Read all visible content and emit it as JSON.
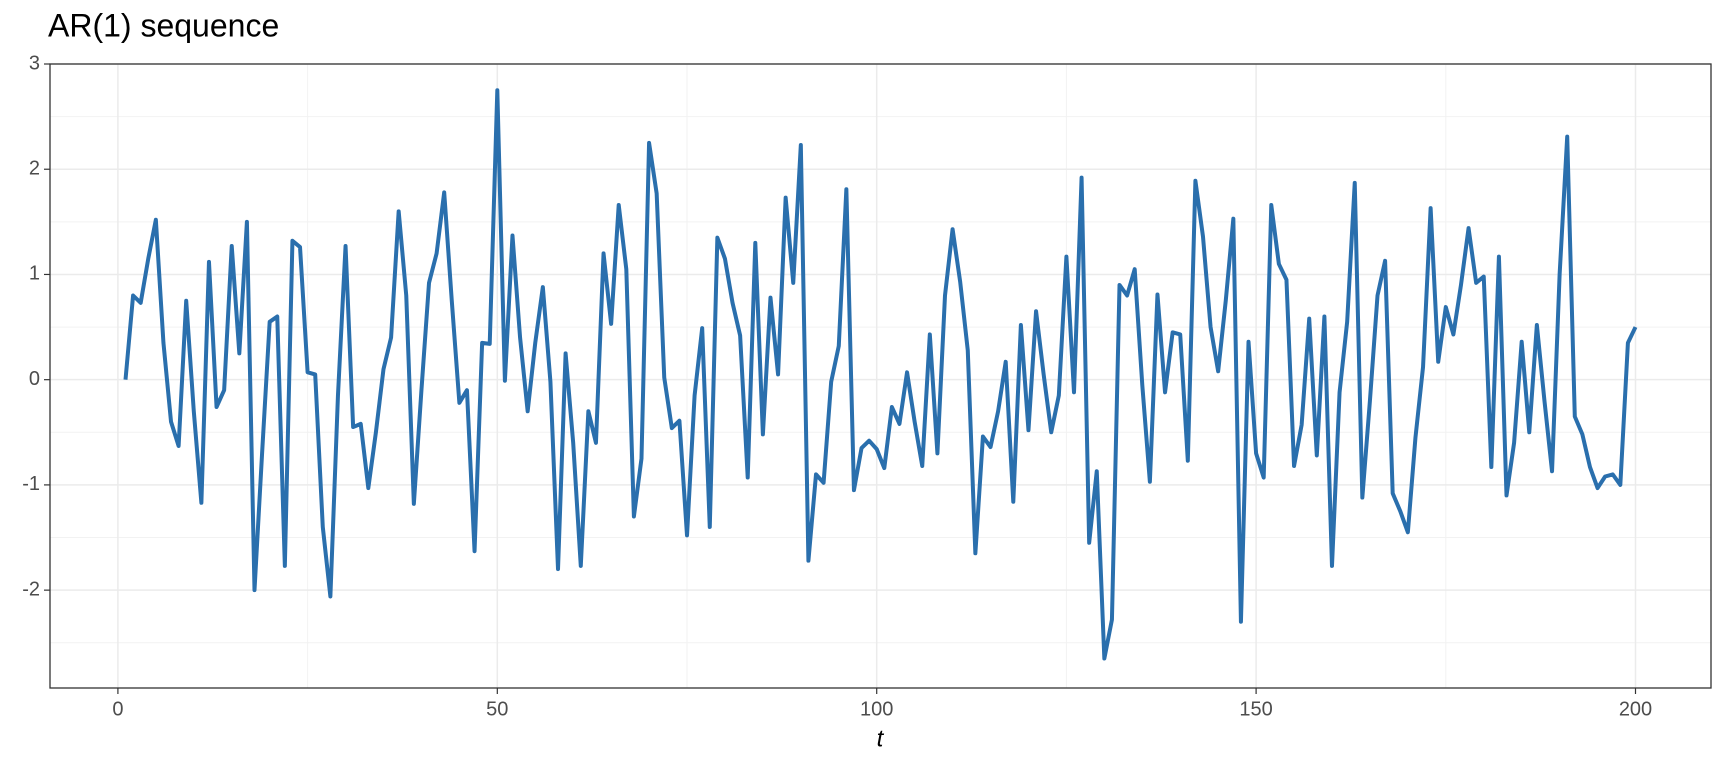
{
  "chart_data": {
    "type": "line",
    "title": "AR(1) sequence",
    "xlabel": "t",
    "x": [
      1,
      2,
      3,
      4,
      5,
      6,
      7,
      8,
      9,
      10,
      11,
      12,
      13,
      14,
      15,
      16,
      17,
      18,
      19,
      20,
      21,
      22,
      23,
      24,
      25,
      26,
      27,
      28,
      29,
      30,
      31,
      32,
      33,
      34,
      35,
      36,
      37,
      38,
      39,
      40,
      41,
      42,
      43,
      44,
      45,
      46,
      47,
      48,
      49,
      50,
      51,
      52,
      53,
      54,
      55,
      56,
      57,
      58,
      59,
      60,
      61,
      62,
      63,
      64,
      65,
      66,
      67,
      68,
      69,
      70,
      71,
      72,
      73,
      74,
      75,
      76,
      77,
      78,
      79,
      80,
      81,
      82,
      83,
      84,
      85,
      86,
      87,
      88,
      89,
      90,
      91,
      92,
      93,
      94,
      95,
      96,
      97,
      98,
      99,
      100,
      101,
      102,
      103,
      104,
      105,
      106,
      107,
      108,
      109,
      110,
      111,
      112,
      113,
      114,
      115,
      116,
      117,
      118,
      119,
      120,
      121,
      122,
      123,
      124,
      125,
      126,
      127,
      128,
      129,
      130,
      131,
      132,
      133,
      134,
      135,
      136,
      137,
      138,
      139,
      140,
      141,
      142,
      143,
      144,
      145,
      146,
      147,
      148,
      149,
      150,
      151,
      152,
      153,
      154,
      155,
      156,
      157,
      158,
      159,
      160,
      161,
      162,
      163,
      164,
      165,
      166,
      167,
      168,
      169,
      170,
      171,
      172,
      173,
      174,
      175,
      176,
      177,
      178,
      179,
      180,
      181,
      182,
      183,
      184,
      185,
      186,
      187,
      188,
      189,
      190,
      191,
      192,
      193,
      194,
      195,
      196,
      197,
      198,
      199,
      200
    ],
    "series": [
      {
        "name": "AR(1)",
        "color": "#2a6fad",
        "values": [
          0,
          0.8,
          0.73,
          1.15,
          1.52,
          0.35,
          -0.4,
          -0.63,
          0.75,
          -0.3,
          -1.17,
          1.12,
          -0.26,
          -0.1,
          1.27,
          0.25,
          1.5,
          -2.0,
          -0.7,
          0.55,
          0.6,
          -1.77,
          1.32,
          1.26,
          0.07,
          0.05,
          -1.4,
          -2.06,
          -0.15,
          1.27,
          -0.45,
          -0.42,
          -1.03,
          -0.5,
          0.1,
          0.4,
          1.6,
          0.8,
          -1.18,
          -0.1,
          0.92,
          1.2,
          1.78,
          0.75,
          -0.22,
          -0.1,
          -1.63,
          0.35,
          0.34,
          2.75,
          -0.01,
          1.37,
          0.4,
          -0.3,
          0.35,
          0.88,
          -0.02,
          -1.8,
          0.25,
          -0.6,
          -1.77,
          -0.3,
          -0.6,
          1.2,
          0.53,
          1.66,
          1.05,
          -1.3,
          -0.75,
          2.25,
          1.77,
          0.02,
          -0.46,
          -0.39,
          -1.48,
          -0.15,
          0.49,
          -1.4,
          1.35,
          1.15,
          0.73,
          0.42,
          -0.93,
          1.3,
          -0.52,
          0.78,
          0.05,
          1.73,
          0.92,
          2.23,
          -1.72,
          -0.9,
          -0.98,
          -0.02,
          0.32,
          1.81,
          -1.05,
          -0.65,
          -0.58,
          -0.66,
          -0.84,
          -0.26,
          -0.42,
          0.07,
          -0.4,
          -0.82,
          0.43,
          -0.7,
          0.8,
          1.43,
          0.93,
          0.28,
          -1.65,
          -0.54,
          -0.64,
          -0.3,
          0.17,
          -1.16,
          0.52,
          -0.48,
          0.65,
          0.05,
          -0.5,
          -0.15,
          1.17,
          -0.12,
          1.92,
          -1.55,
          -0.87,
          -2.65,
          -2.28,
          0.9,
          0.8,
          1.05,
          -0.05,
          -0.97,
          0.81,
          -0.12,
          0.45,
          0.43,
          -0.77,
          1.89,
          1.36,
          0.5,
          0.08,
          0.75,
          1.53,
          -2.3,
          0.36,
          -0.7,
          -0.93,
          1.66,
          1.1,
          0.95,
          -0.82,
          -0.43,
          0.58,
          -0.72,
          0.6,
          -1.77,
          -0.12,
          0.55,
          1.87,
          -1.12,
          -0.2,
          0.8,
          1.13,
          -1.08,
          -1.25,
          -1.45,
          -0.55,
          0.12,
          1.63,
          0.17,
          0.69,
          0.43,
          0.9,
          1.44,
          0.92,
          0.98,
          -0.83,
          1.17,
          -1.1,
          -0.6,
          0.36,
          -0.5,
          0.52,
          -0.2,
          -0.87,
          1.0,
          2.31,
          -0.35,
          -0.52,
          -0.83,
          -1.03,
          -0.92,
          -0.9,
          -1.0,
          0.35,
          0.5
        ]
      }
    ],
    "xlim": [
      -8.95,
      209.95
    ],
    "xticks": [
      0,
      50,
      100,
      150,
      200
    ],
    "ylim": [
      -2.93,
      3.0
    ],
    "yticks": [
      -2,
      -1,
      0,
      1,
      2,
      3
    ],
    "grid": true
  }
}
